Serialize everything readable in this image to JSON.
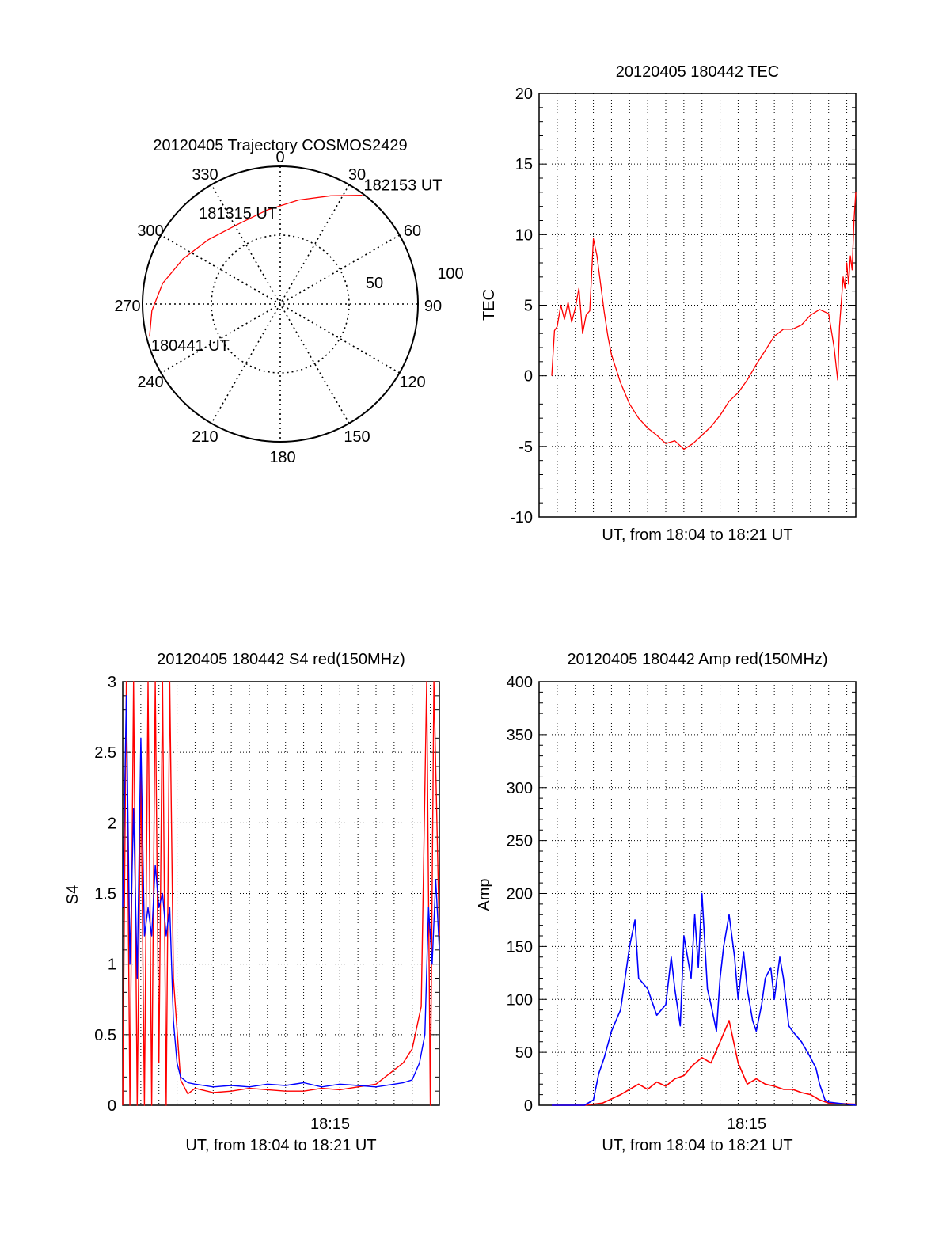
{
  "chart_data": [
    {
      "type": "polar",
      "title": "20120405 Trajectory COSMOS2429",
      "azimuth_labels": [
        "0",
        "30",
        "60",
        "90",
        "120",
        "150",
        "180",
        "210",
        "240",
        "270",
        "300",
        "330"
      ],
      "ring_labels": [
        "50",
        "100"
      ],
      "track": {
        "color": "#ff0000",
        "points": [
          {
            "az": 256,
            "zen": 88
          },
          {
            "az": 267,
            "zen": 84
          },
          {
            "az": 280,
            "zen": 78
          },
          {
            "az": 295,
            "zen": 70
          },
          {
            "az": 312,
            "zen": 63
          },
          {
            "az": 332,
            "zen": 59
          },
          {
            "az": 352,
            "zen": 62
          },
          {
            "az": 10,
            "zen": 69
          },
          {
            "az": 25,
            "zen": 78
          },
          {
            "az": 37,
            "zen": 89
          }
        ]
      },
      "annotations": [
        {
          "text": "180441 UT",
          "az": 256,
          "zen": 88
        },
        {
          "text": "181315 UT",
          "az": 333,
          "zen": 58
        },
        {
          "text": "182153 UT",
          "az": 37,
          "zen": 89
        }
      ]
    },
    {
      "type": "line",
      "title": "20120405 180442 TEC",
      "xlabel": "UT, from 18:04 to 18:21 UT",
      "ylabel": "TEC",
      "xlim": [
        0,
        17.5
      ],
      "ylim": [
        -10,
        20
      ],
      "yticks": [
        "-10",
        "-5",
        "0",
        "5",
        "10",
        "15",
        "20"
      ],
      "grid": true,
      "series": [
        {
          "color": "#ff0000",
          "x": [
            0.7,
            0.85,
            1.0,
            1.2,
            1.4,
            1.6,
            1.8,
            2.0,
            2.2,
            2.4,
            2.6,
            2.8,
            3.0,
            3.2,
            3.4,
            3.6,
            3.8,
            4.0,
            4.5,
            5.0,
            5.5,
            6.0,
            6.5,
            7.0,
            7.5,
            8.0,
            8.5,
            9.0,
            9.5,
            10.0,
            10.5,
            11.0,
            11.5,
            12.0,
            12.5,
            13.0,
            13.5,
            14.0,
            14.5,
            15.0,
            15.5,
            16.0,
            16.3,
            16.5,
            16.6,
            16.8,
            16.9,
            17.0,
            17.1,
            17.2,
            17.3,
            17.4,
            17.5
          ],
          "y": [
            0,
            3.2,
            3.5,
            5.0,
            4.0,
            5.2,
            3.8,
            4.8,
            6.2,
            3.0,
            4.3,
            4.6,
            9.7,
            8.5,
            6.5,
            4.5,
            2.8,
            1.5,
            -0.5,
            -2.0,
            -3.0,
            -3.7,
            -4.2,
            -4.8,
            -4.6,
            -5.2,
            -4.8,
            -4.2,
            -3.6,
            -2.8,
            -1.8,
            -1.2,
            -0.3,
            0.8,
            1.8,
            2.8,
            3.3,
            3.3,
            3.6,
            4.3,
            4.7,
            4.4,
            2.0,
            -0.3,
            3.5,
            7.0,
            6.2,
            8.0,
            6.5,
            8.5,
            7.5,
            11.0,
            13.0
          ]
        }
      ]
    },
    {
      "type": "line",
      "title": "20120405 180442 S4 red(150MHz)",
      "xlabel": "UT, from 18:04 to 18:21 UT",
      "ylabel": "S4",
      "xlim": [
        0,
        17.5
      ],
      "ylim": [
        0,
        3
      ],
      "yticks": [
        "0",
        "0.5",
        "1",
        "1.5",
        "2",
        "2.5",
        "3"
      ],
      "xtick_label": {
        "value": 10.0,
        "text": "18:15"
      },
      "grid": true,
      "series": [
        {
          "color": "#ff0000",
          "x": [
            0.0,
            0.2,
            0.4,
            0.6,
            0.8,
            1.0,
            1.2,
            1.4,
            1.6,
            1.8,
            2.0,
            2.2,
            2.4,
            2.6,
            2.8,
            3.2,
            3.6,
            4.0,
            5.0,
            6.0,
            7.0,
            8.0,
            9.0,
            10.0,
            11.0,
            12.0,
            13.0,
            14.0,
            15.0,
            15.5,
            16.0,
            16.5,
            16.8,
            17.0,
            17.2,
            17.5
          ],
          "y": [
            0.0,
            3.0,
            0.0,
            3.0,
            0.0,
            2.4,
            0.0,
            3.0,
            0.0,
            3.0,
            0.3,
            3.0,
            0.0,
            3.0,
            0.9,
            0.18,
            0.08,
            0.12,
            0.09,
            0.1,
            0.12,
            0.11,
            0.1,
            0.1,
            0.12,
            0.11,
            0.13,
            0.15,
            0.25,
            0.3,
            0.4,
            0.7,
            3.0,
            0.0,
            3.0,
            1.2
          ]
        },
        {
          "color": "#0000ff",
          "x": [
            0.0,
            0.2,
            0.4,
            0.6,
            0.8,
            1.0,
            1.2,
            1.4,
            1.6,
            1.8,
            2.0,
            2.2,
            2.4,
            2.6,
            2.8,
            3.0,
            3.2,
            3.6,
            4.0,
            5.0,
            6.0,
            7.0,
            8.0,
            9.0,
            10.0,
            11.0,
            12.0,
            13.0,
            14.0,
            15.0,
            15.5,
            16.0,
            16.4,
            16.7,
            16.9,
            17.1,
            17.3,
            17.5
          ],
          "y": [
            1.4,
            2.9,
            1.0,
            2.1,
            0.9,
            2.6,
            1.2,
            1.4,
            1.2,
            1.7,
            1.4,
            1.5,
            1.2,
            1.4,
            0.6,
            0.3,
            0.2,
            0.16,
            0.15,
            0.13,
            0.14,
            0.13,
            0.15,
            0.14,
            0.16,
            0.13,
            0.15,
            0.14,
            0.13,
            0.15,
            0.16,
            0.18,
            0.3,
            0.5,
            1.4,
            1.0,
            1.6,
            1.1
          ]
        }
      ]
    },
    {
      "type": "line",
      "title": "20120405 180442 Amp red(150MHz)",
      "xlabel": "UT, from 18:04 to 18:21 UT",
      "ylabel": "Amp",
      "xlim": [
        0,
        17.5
      ],
      "ylim": [
        0,
        400
      ],
      "yticks": [
        "0",
        "50",
        "100",
        "150",
        "200",
        "250",
        "300",
        "350",
        "400"
      ],
      "xtick_label": {
        "value": 10.0,
        "text": "18:15"
      },
      "grid": true,
      "series": [
        {
          "color": "#ff0000",
          "x": [
            0.7,
            2.5,
            3.5,
            4.5,
            5.5,
            6.0,
            6.5,
            7.0,
            7.5,
            8.0,
            8.5,
            9.0,
            9.5,
            10.0,
            10.5,
            11.0,
            11.5,
            12.0,
            12.5,
            13.0,
            13.5,
            14.0,
            14.5,
            15.0,
            15.5,
            16.0,
            17.5
          ],
          "y": [
            0,
            0,
            2,
            10,
            20,
            15,
            22,
            18,
            25,
            28,
            38,
            45,
            40,
            60,
            80,
            40,
            20,
            25,
            20,
            18,
            15,
            15,
            12,
            10,
            5,
            2,
            1
          ]
        },
        {
          "color": "#0000ff",
          "x": [
            0.7,
            2.5,
            3.0,
            3.3,
            3.6,
            4.0,
            4.5,
            5.0,
            5.3,
            5.5,
            6.0,
            6.5,
            7.0,
            7.3,
            7.5,
            7.8,
            8.0,
            8.4,
            8.6,
            8.8,
            9.0,
            9.3,
            9.5,
            9.8,
            10.0,
            10.2,
            10.5,
            10.8,
            11.0,
            11.3,
            11.5,
            11.8,
            12.0,
            12.3,
            12.5,
            12.8,
            13.0,
            13.3,
            13.5,
            13.8,
            14.0,
            14.5,
            15.0,
            15.3,
            15.5,
            15.8,
            16.0,
            17.5
          ],
          "y": [
            0,
            0,
            5,
            30,
            45,
            70,
            90,
            150,
            175,
            120,
            110,
            85,
            95,
            140,
            110,
            75,
            160,
            120,
            180,
            130,
            200,
            110,
            95,
            70,
            120,
            150,
            180,
            140,
            100,
            145,
            110,
            80,
            70,
            95,
            120,
            130,
            100,
            140,
            120,
            75,
            70,
            60,
            45,
            35,
            20,
            5,
            3,
            0
          ]
        }
      ]
    }
  ]
}
